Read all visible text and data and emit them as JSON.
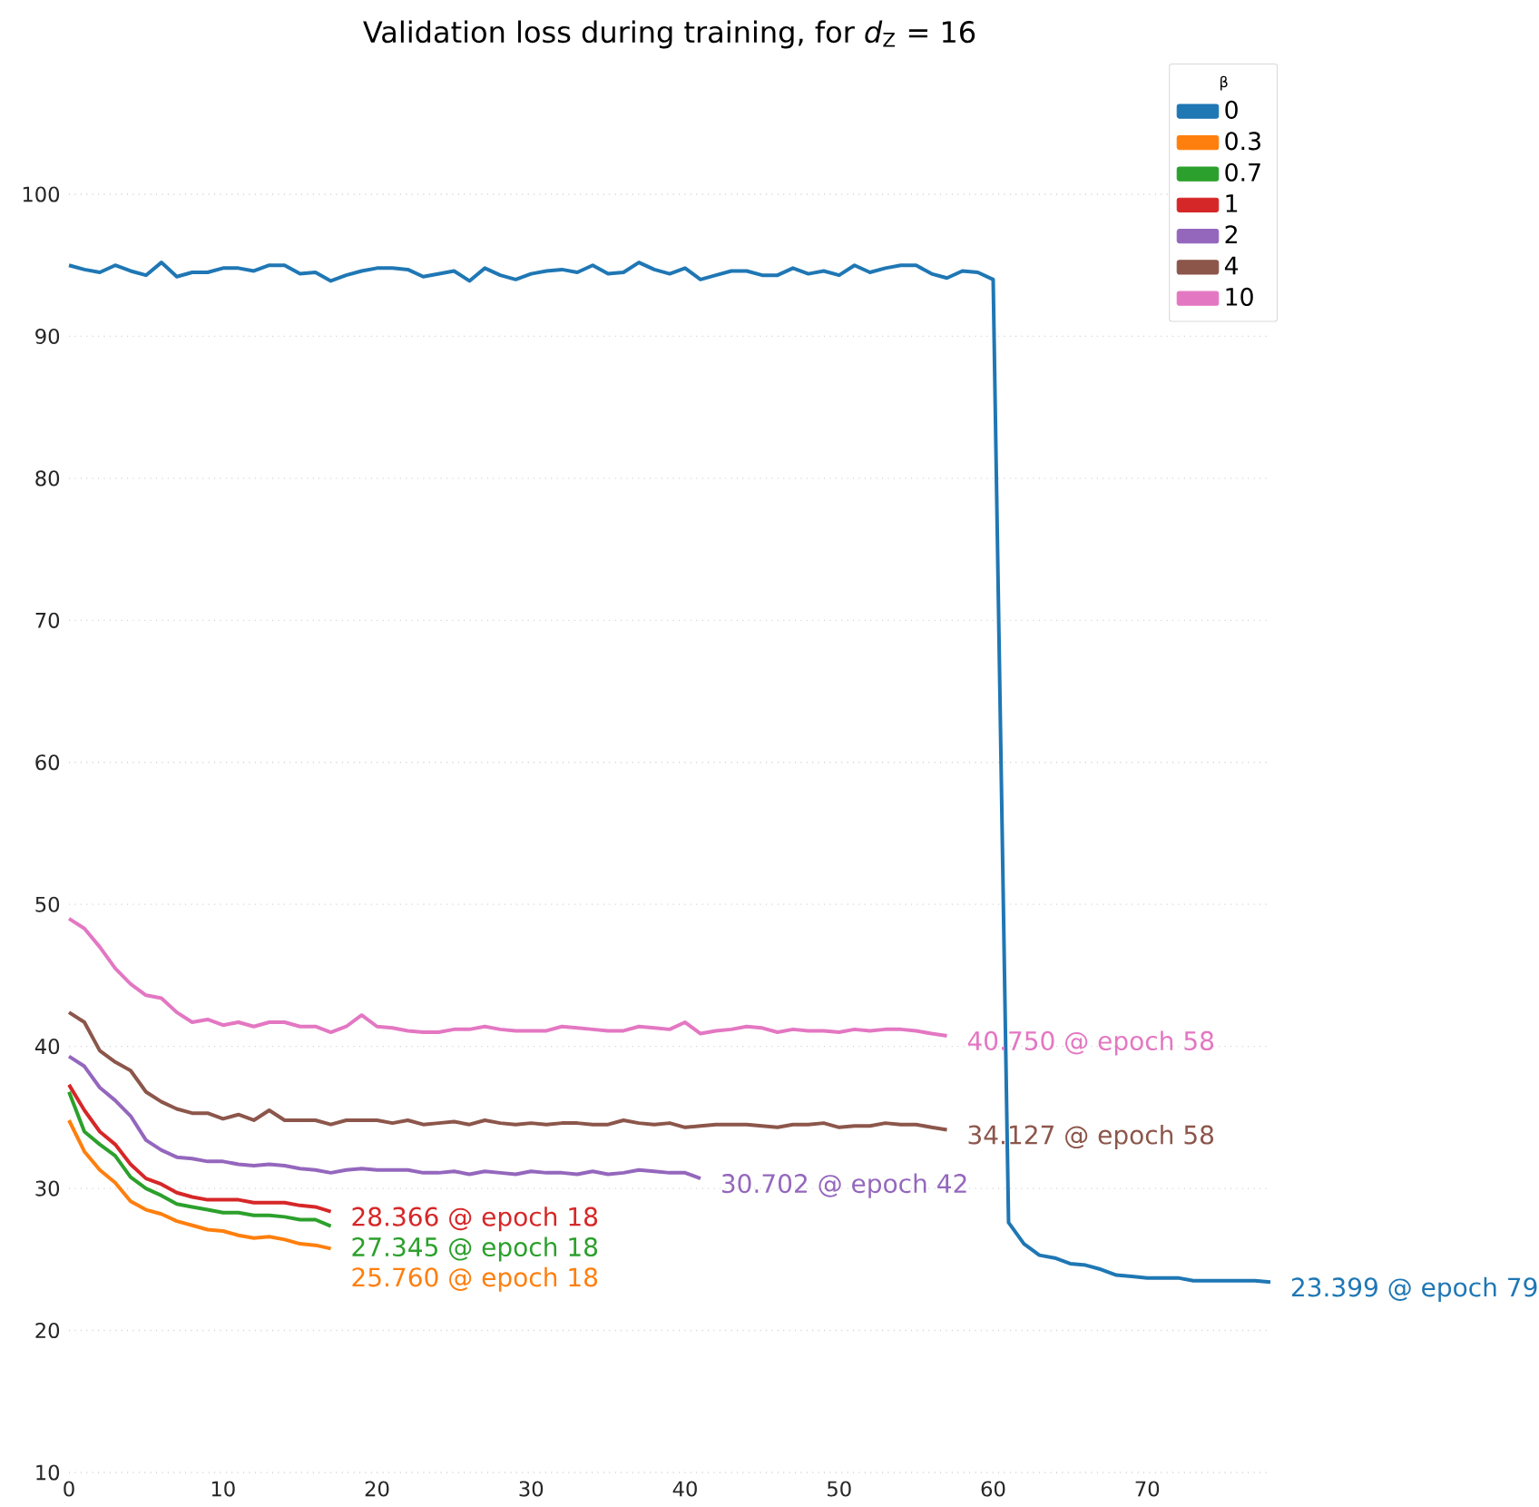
{
  "chart_data": {
    "type": "line",
    "title": "Validation loss during training, for *d*$_{Z}$ = 16",
    "legend_title": "β",
    "legend": "top right",
    "grid": "y",
    "xlim": [
      0,
      78
    ],
    "ylim": [
      10,
      100
    ],
    "xticks": [
      0,
      10,
      20,
      30,
      40,
      50,
      60,
      70
    ],
    "yticks": [
      10,
      20,
      30,
      40,
      50,
      60,
      70,
      80,
      90,
      100
    ],
    "series": [
      {
        "name": "0",
        "color": "#1f77b4",
        "x": [
          0,
          1,
          2,
          3,
          4,
          5,
          6,
          7,
          8,
          9,
          10,
          11,
          12,
          13,
          14,
          15,
          16,
          17,
          18,
          19,
          20,
          21,
          22,
          23,
          24,
          25,
          26,
          27,
          28,
          29,
          30,
          31,
          32,
          33,
          34,
          35,
          36,
          37,
          38,
          39,
          40,
          41,
          42,
          43,
          44,
          45,
          46,
          47,
          48,
          49,
          50,
          51,
          52,
          53,
          54,
          55,
          56,
          57,
          58,
          59,
          60,
          61,
          62,
          63,
          64,
          65,
          66,
          67,
          68,
          69,
          70,
          71,
          72,
          73,
          74,
          75,
          76,
          77,
          78
        ],
        "values": [
          95.0,
          94.7,
          94.5,
          95.0,
          94.6,
          94.3,
          95.2,
          94.2,
          94.5,
          94.5,
          94.8,
          94.8,
          94.6,
          95.0,
          95.0,
          94.4,
          94.5,
          93.9,
          94.3,
          94.6,
          94.8,
          94.8,
          94.7,
          94.2,
          94.4,
          94.6,
          93.9,
          94.8,
          94.3,
          94.0,
          94.4,
          94.6,
          94.7,
          94.5,
          95.0,
          94.4,
          94.5,
          95.2,
          94.7,
          94.4,
          94.8,
          94.0,
          94.3,
          94.6,
          94.6,
          94.3,
          94.3,
          94.8,
          94.4,
          94.6,
          94.3,
          95.0,
          94.5,
          94.8,
          95.0,
          95.0,
          94.4,
          94.1,
          94.6,
          94.5,
          94.0,
          27.6,
          26.1,
          25.3,
          25.1,
          24.7,
          24.6,
          24.3,
          23.9,
          23.8,
          23.7,
          23.7,
          23.7,
          23.5,
          23.5,
          23.5,
          23.5,
          23.5,
          23.399
        ]
      },
      {
        "name": "0.3",
        "color": "#ff7f0e",
        "x": [
          0,
          1,
          2,
          3,
          4,
          5,
          6,
          7,
          8,
          9,
          10,
          11,
          12,
          13,
          14,
          15,
          16,
          17
        ],
        "values": [
          34.8,
          32.6,
          31.3,
          30.4,
          29.1,
          28.5,
          28.2,
          27.7,
          27.4,
          27.1,
          27.0,
          26.7,
          26.5,
          26.6,
          26.4,
          26.1,
          26.0,
          25.76
        ]
      },
      {
        "name": "0.7",
        "color": "#2ca02c",
        "x": [
          0,
          1,
          2,
          3,
          4,
          5,
          6,
          7,
          8,
          9,
          10,
          11,
          12,
          13,
          14,
          15,
          16,
          17
        ],
        "values": [
          36.8,
          34.0,
          33.1,
          32.3,
          30.8,
          30.0,
          29.5,
          28.9,
          28.7,
          28.5,
          28.3,
          28.3,
          28.1,
          28.1,
          28.0,
          27.8,
          27.8,
          27.345
        ]
      },
      {
        "name": "1",
        "color": "#d62728",
        "x": [
          0,
          1,
          2,
          3,
          4,
          5,
          6,
          7,
          8,
          9,
          10,
          11,
          12,
          13,
          14,
          15,
          16,
          17
        ],
        "values": [
          37.3,
          35.5,
          34.0,
          33.1,
          31.7,
          30.7,
          30.3,
          29.7,
          29.4,
          29.2,
          29.2,
          29.2,
          29.0,
          29.0,
          29.0,
          28.8,
          28.7,
          28.366
        ]
      },
      {
        "name": "2",
        "color": "#9467bd",
        "x": [
          0,
          1,
          2,
          3,
          4,
          5,
          6,
          7,
          8,
          9,
          10,
          11,
          12,
          13,
          14,
          15,
          16,
          17,
          18,
          19,
          20,
          21,
          22,
          23,
          24,
          25,
          26,
          27,
          28,
          29,
          30,
          31,
          32,
          33,
          34,
          35,
          36,
          37,
          38,
          39,
          40,
          41
        ],
        "values": [
          39.3,
          38.6,
          37.1,
          36.2,
          35.1,
          33.4,
          32.7,
          32.2,
          32.1,
          31.9,
          31.9,
          31.7,
          31.6,
          31.7,
          31.6,
          31.4,
          31.3,
          31.1,
          31.3,
          31.4,
          31.3,
          31.3,
          31.3,
          31.1,
          31.1,
          31.2,
          31.0,
          31.2,
          31.1,
          31.0,
          31.2,
          31.1,
          31.1,
          31.0,
          31.2,
          31.0,
          31.1,
          31.3,
          31.2,
          31.1,
          31.1,
          30.702
        ]
      },
      {
        "name": "4",
        "color": "#8c564b",
        "x": [
          0,
          1,
          2,
          3,
          4,
          5,
          6,
          7,
          8,
          9,
          10,
          11,
          12,
          13,
          14,
          15,
          16,
          17,
          18,
          19,
          20,
          21,
          22,
          23,
          24,
          25,
          26,
          27,
          28,
          29,
          30,
          31,
          32,
          33,
          34,
          35,
          36,
          37,
          38,
          39,
          40,
          41,
          42,
          43,
          44,
          45,
          46,
          47,
          48,
          49,
          50,
          51,
          52,
          53,
          54,
          55,
          56,
          57
        ],
        "values": [
          42.4,
          41.7,
          39.7,
          38.9,
          38.3,
          36.8,
          36.1,
          35.6,
          35.3,
          35.3,
          34.9,
          35.2,
          34.8,
          35.5,
          34.8,
          34.8,
          34.8,
          34.5,
          34.8,
          34.8,
          34.8,
          34.6,
          34.8,
          34.5,
          34.6,
          34.7,
          34.5,
          34.8,
          34.6,
          34.5,
          34.6,
          34.5,
          34.6,
          34.6,
          34.5,
          34.5,
          34.8,
          34.6,
          34.5,
          34.6,
          34.3,
          34.4,
          34.5,
          34.5,
          34.5,
          34.4,
          34.3,
          34.5,
          34.5,
          34.6,
          34.3,
          34.4,
          34.4,
          34.6,
          34.5,
          34.5,
          34.3,
          34.127
        ]
      },
      {
        "name": "10",
        "color": "#e377c2",
        "x": [
          0,
          1,
          2,
          3,
          4,
          5,
          6,
          7,
          8,
          9,
          10,
          11,
          12,
          13,
          14,
          15,
          16,
          17,
          18,
          19,
          20,
          21,
          22,
          23,
          24,
          25,
          26,
          27,
          28,
          29,
          30,
          31,
          32,
          33,
          34,
          35,
          36,
          37,
          38,
          39,
          40,
          41,
          42,
          43,
          44,
          45,
          46,
          47,
          48,
          49,
          50,
          51,
          52,
          53,
          54,
          55,
          56,
          57
        ],
        "values": [
          49.0,
          48.3,
          47.0,
          45.5,
          44.4,
          43.6,
          43.4,
          42.4,
          41.7,
          41.9,
          41.5,
          41.7,
          41.4,
          41.7,
          41.7,
          41.4,
          41.4,
          41.0,
          41.4,
          42.2,
          41.4,
          41.3,
          41.1,
          41.0,
          41.0,
          41.2,
          41.2,
          41.4,
          41.2,
          41.1,
          41.1,
          41.1,
          41.4,
          41.3,
          41.2,
          41.1,
          41.1,
          41.4,
          41.3,
          41.2,
          41.7,
          40.9,
          41.1,
          41.2,
          41.4,
          41.3,
          41.0,
          41.2,
          41.1,
          41.1,
          41.0,
          41.2,
          41.1,
          41.2,
          41.2,
          41.1,
          40.9,
          40.75
        ]
      }
    ],
    "annotations": [
      {
        "text": "23.399 @ epoch 79",
        "x": 78,
        "y": 23.399
      },
      {
        "text": "25.760 @ epoch 18",
        "x": 17,
        "y": 25.76
      },
      {
        "text": "27.345 @ epoch 18",
        "x": 17,
        "y": 27.345
      },
      {
        "text": "28.366 @ epoch 18",
        "x": 17,
        "y": 28.366
      },
      {
        "text": "30.702 @ epoch 42",
        "x": 41,
        "y": 30.702
      },
      {
        "text": "34.127 @ epoch 58",
        "x": 57,
        "y": 34.127
      },
      {
        "text": "40.750 @ epoch 58",
        "x": 57,
        "y": 40.75
      }
    ]
  }
}
